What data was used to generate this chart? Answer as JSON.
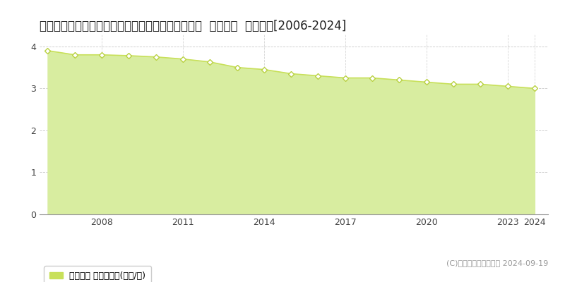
{
  "title": "北海道久遠郡せたな町北檜山区北檜山３１１番９外  基準地価  地価推移[2006-2024]",
  "years": [
    2006,
    2007,
    2008,
    2009,
    2010,
    2011,
    2012,
    2013,
    2014,
    2015,
    2016,
    2017,
    2018,
    2019,
    2020,
    2021,
    2022,
    2023,
    2024
  ],
  "values": [
    3.9,
    3.8,
    3.8,
    3.78,
    3.75,
    3.7,
    3.63,
    3.5,
    3.45,
    3.35,
    3.3,
    3.25,
    3.25,
    3.2,
    3.15,
    3.1,
    3.1,
    3.05,
    3.0
  ],
  "line_color": "#c8e05a",
  "fill_color": "#d8eda0",
  "marker_facecolor": "#ffffff",
  "marker_edgecolor": "#b8d040",
  "grid_color": "#bbbbbb",
  "background_color": "#ffffff",
  "plot_bg_color": "#ffffff",
  "ylim": [
    0,
    4.3
  ],
  "yticks": [
    0,
    1,
    2,
    3,
    4
  ],
  "xticks": [
    2008,
    2011,
    2014,
    2017,
    2020,
    2023,
    2024
  ],
  "xlim_left": 2005.7,
  "xlim_right": 2024.5,
  "legend_label": "基準地価 平均坪単価(万円/坪)",
  "legend_color": "#c8e05a",
  "copyright_text": "(C)土地価格ドットコム 2024-09-19",
  "title_fontsize": 12,
  "axis_fontsize": 9,
  "legend_fontsize": 9,
  "copyright_fontsize": 8
}
